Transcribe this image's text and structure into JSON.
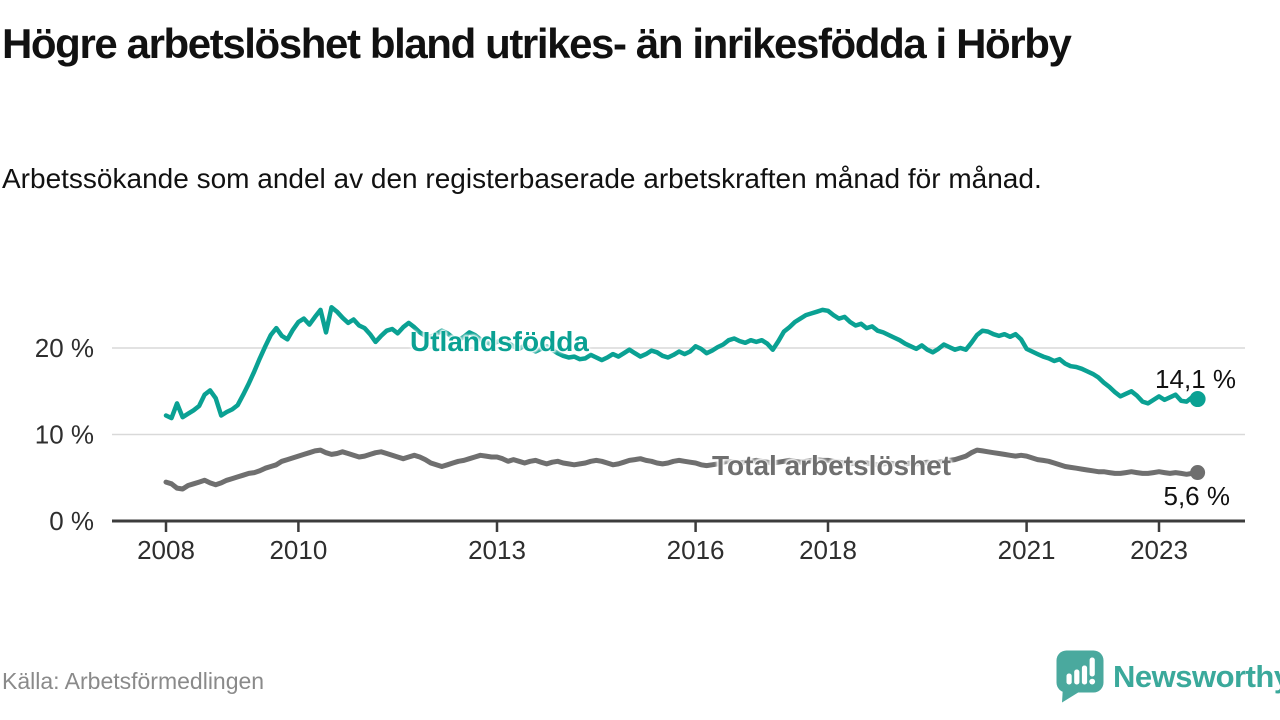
{
  "header": {
    "title": "Högre arbetslöshet bland utrikes- än inrikesfödda i Hörby",
    "subtitle": "Arbetssökande som andel av den registerbaserade arbetskraften månad för månad."
  },
  "footer": {
    "source": "Källa: Arbetsförmedlingen",
    "brand": "Newsworthy"
  },
  "colors": {
    "accent_teal": "#0aa193",
    "series_gray": "#6f6f6f",
    "grid": "#d9d9d9",
    "axis": "#3c3c3c",
    "tick_text": "#2e2e2e",
    "text_dark": "#111111",
    "text_muted": "#8a8a8a",
    "logo_teal": "#4aa99e"
  },
  "chart_data": {
    "type": "line",
    "unit": "%",
    "x_start_year": 2008,
    "x_step_years": 0.083333,
    "xticks": [
      2008,
      2010,
      2013,
      2016,
      2018,
      2021,
      2023
    ],
    "yticks": [
      0,
      10,
      20
    ],
    "ytick_suffix": " %",
    "ylim": [
      0,
      26
    ],
    "xlim": [
      2007.3,
      2024.3
    ],
    "grid": "horizontal",
    "legend_position": "inline",
    "series": [
      {
        "name": "Utlandsfödda",
        "color": "#0aa193",
        "end_label": "14,1 %",
        "end_value": 14.1,
        "values": [
          12.2,
          11.9,
          13.6,
          12.0,
          12.4,
          12.8,
          13.3,
          14.6,
          15.1,
          14.2,
          12.2,
          12.6,
          12.9,
          13.4,
          14.6,
          15.9,
          17.3,
          18.8,
          20.2,
          21.5,
          22.3,
          21.4,
          21.0,
          22.1,
          23.0,
          23.4,
          22.7,
          23.6,
          24.4,
          21.8,
          24.7,
          24.2,
          23.5,
          22.9,
          23.3,
          22.6,
          22.3,
          21.6,
          20.7,
          21.4,
          22.0,
          22.2,
          21.7,
          22.4,
          22.9,
          22.4,
          21.8,
          21.4,
          21.3,
          21.6,
          22.0,
          21.7,
          21.2,
          20.9,
          21.3,
          21.8,
          21.5,
          21.0,
          20.7,
          20.4,
          20.7,
          21.0,
          20.6,
          20.2,
          19.9,
          20.3,
          19.9,
          19.6,
          19.9,
          20.2,
          19.8,
          19.4,
          19.1,
          18.9,
          19.0,
          18.7,
          18.8,
          19.2,
          18.9,
          18.6,
          18.9,
          19.3,
          19.0,
          19.4,
          19.8,
          19.4,
          19.0,
          19.3,
          19.7,
          19.5,
          19.1,
          18.9,
          19.2,
          19.6,
          19.3,
          19.6,
          20.2,
          19.9,
          19.4,
          19.7,
          20.1,
          20.4,
          20.9,
          21.1,
          20.8,
          20.6,
          20.9,
          20.7,
          20.9,
          20.5,
          19.8,
          20.8,
          21.9,
          22.4,
          23.0,
          23.4,
          23.8,
          24.0,
          24.2,
          24.4,
          24.3,
          23.8,
          23.4,
          23.6,
          23.0,
          22.6,
          22.8,
          22.3,
          22.5,
          22.0,
          21.8,
          21.5,
          21.2,
          20.9,
          20.5,
          20.2,
          19.9,
          20.3,
          19.8,
          19.5,
          19.9,
          20.4,
          20.1,
          19.8,
          20.0,
          19.8,
          20.6,
          21.5,
          22.0,
          21.9,
          21.6,
          21.4,
          21.6,
          21.3,
          21.6,
          21.0,
          19.9,
          19.6,
          19.3,
          19.0,
          18.8,
          18.5,
          18.7,
          18.2,
          17.9,
          17.8,
          17.6,
          17.3,
          17.0,
          16.6,
          16.0,
          15.5,
          14.9,
          14.4,
          14.7,
          15.0,
          14.5,
          13.8,
          13.6,
          14.0,
          14.4,
          14.0,
          14.3,
          14.6,
          13.9,
          13.8,
          14.3,
          14.1
        ]
      },
      {
        "name": "Total arbetslöshet",
        "color": "#6f6f6f",
        "end_label": "5,6 %",
        "end_value": 5.6,
        "values": [
          4.5,
          4.3,
          3.8,
          3.7,
          4.1,
          4.3,
          4.5,
          4.7,
          4.4,
          4.2,
          4.4,
          4.7,
          4.9,
          5.1,
          5.3,
          5.5,
          5.6,
          5.8,
          6.1,
          6.3,
          6.5,
          6.9,
          7.1,
          7.3,
          7.5,
          7.7,
          7.9,
          8.1,
          8.2,
          7.9,
          7.7,
          7.8,
          8.0,
          7.8,
          7.6,
          7.4,
          7.5,
          7.7,
          7.9,
          8.0,
          7.8,
          7.6,
          7.4,
          7.2,
          7.4,
          7.6,
          7.4,
          7.1,
          6.7,
          6.5,
          6.3,
          6.5,
          6.7,
          6.9,
          7.0,
          7.2,
          7.4,
          7.6,
          7.5,
          7.4,
          7.4,
          7.2,
          6.9,
          7.1,
          6.9,
          6.7,
          6.9,
          7.0,
          6.8,
          6.6,
          6.8,
          6.9,
          6.7,
          6.6,
          6.5,
          6.6,
          6.7,
          6.9,
          7.0,
          6.9,
          6.7,
          6.5,
          6.6,
          6.8,
          7.0,
          7.1,
          7.2,
          7.0,
          6.9,
          6.7,
          6.6,
          6.7,
          6.9,
          7.0,
          6.9,
          6.8,
          6.7,
          6.5,
          6.4,
          6.5,
          6.6,
          6.8,
          6.9,
          6.8,
          6.7,
          6.8,
          6.9,
          7.0,
          6.9,
          6.8,
          6.7,
          6.8,
          6.9,
          7.0,
          6.9,
          6.8,
          6.9,
          7.0,
          7.1,
          7.0,
          7.0,
          6.9,
          6.8,
          6.7,
          6.6,
          6.7,
          6.8,
          6.7,
          6.6,
          6.5,
          6.6,
          6.7,
          6.6,
          6.5,
          6.6,
          6.7,
          6.6,
          6.7,
          6.8,
          6.7,
          6.8,
          6.9,
          7.0,
          7.1,
          7.3,
          7.5,
          7.9,
          8.2,
          8.1,
          8.0,
          7.9,
          7.8,
          7.7,
          7.6,
          7.5,
          7.6,
          7.5,
          7.3,
          7.1,
          7.0,
          6.9,
          6.7,
          6.5,
          6.3,
          6.2,
          6.1,
          6.0,
          5.9,
          5.8,
          5.7,
          5.7,
          5.6,
          5.5,
          5.5,
          5.6,
          5.7,
          5.6,
          5.5,
          5.5,
          5.6,
          5.7,
          5.6,
          5.5,
          5.6,
          5.5,
          5.4,
          5.5,
          5.6
        ]
      }
    ]
  }
}
